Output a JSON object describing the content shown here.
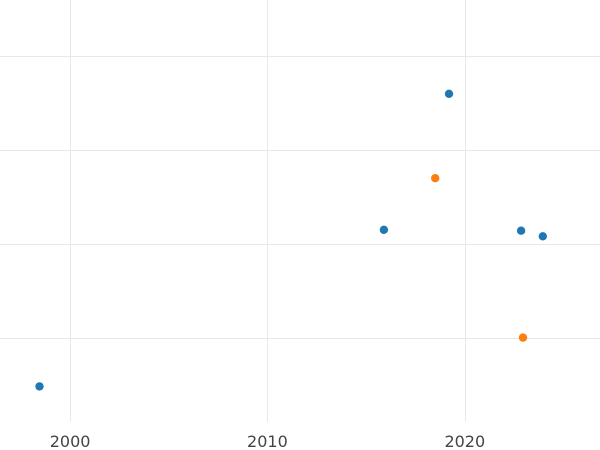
{
  "chart_data": {
    "type": "scatter",
    "title": "",
    "xlabel": "",
    "ylabel": "",
    "xlim": [
      1996.45,
      2026.85
    ],
    "ylim": [
      0.0,
      4.5
    ],
    "x_ticks": [
      2000,
      2010,
      2020
    ],
    "x_tick_labels": [
      "2000",
      "2010",
      "2020"
    ],
    "y_gridlines": [
      0.9,
      1.9,
      2.9,
      3.9
    ],
    "grid": true,
    "legend": "none",
    "series": [
      {
        "color": "#1f77b4",
        "points": [
          {
            "x": 1998.45,
            "y": 0.38
          },
          {
            "x": 2015.9,
            "y": 2.05
          },
          {
            "x": 2019.2,
            "y": 3.5
          },
          {
            "x": 2022.85,
            "y": 2.04
          },
          {
            "x": 2023.95,
            "y": 1.98
          }
        ]
      },
      {
        "color": "#ff7f0e",
        "points": [
          {
            "x": 2018.5,
            "y": 2.6
          },
          {
            "x": 2022.95,
            "y": 0.9
          }
        ]
      }
    ]
  }
}
